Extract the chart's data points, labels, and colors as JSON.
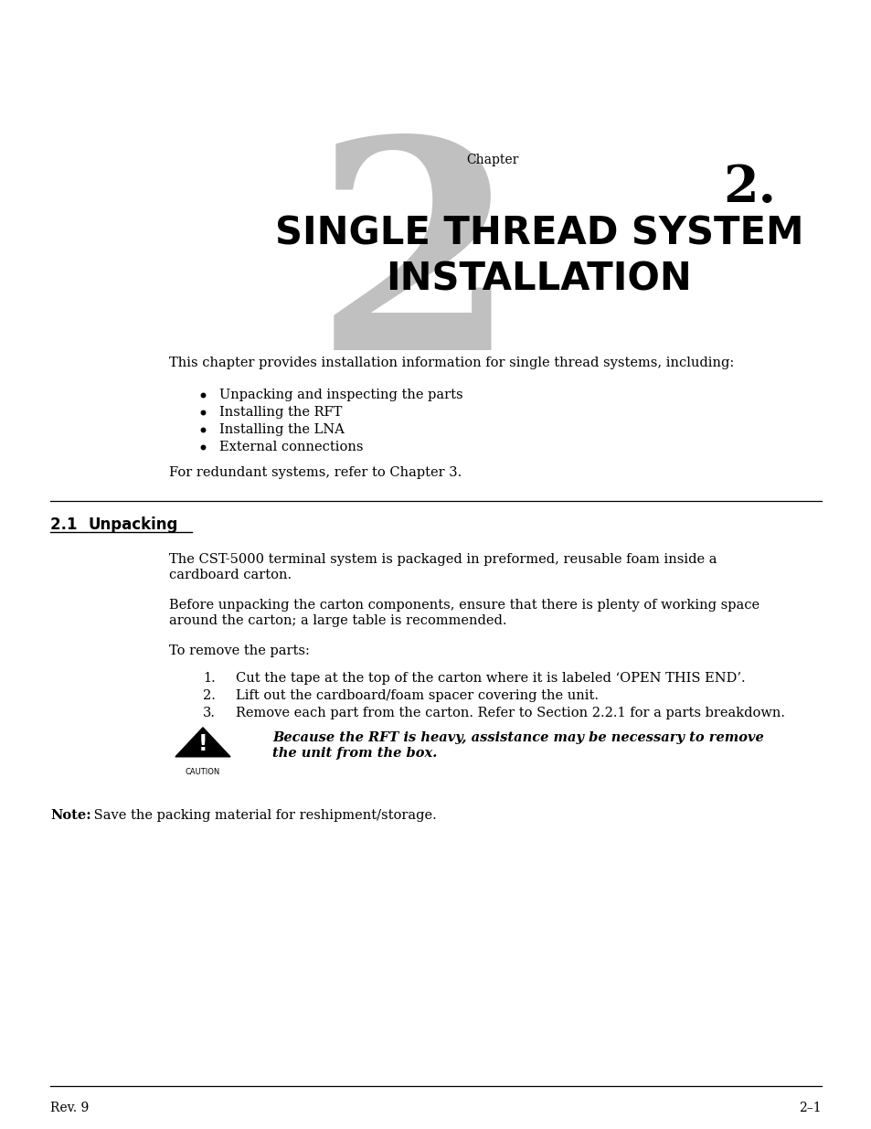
{
  "bg_color": "#ffffff",
  "chapter_label": "Chapter",
  "chapter_number": "2.",
  "chapter_title_line1": "SINGLE THREAD SYSTEM",
  "chapter_title_line2": "INSTALLATION",
  "intro_text": "This chapter provides installation information for single thread systems, including:",
  "bullets": [
    "Unpacking and inspecting the parts",
    "Installing the RFT",
    "Installing the LNA",
    "External connections"
  ],
  "redundant_text": "For redundant systems, refer to Chapter 3.",
  "section_title_num": "2.1  ",
  "section_title_word": "Unpacking",
  "para1_line1": "The CST-5000 terminal system is packaged in preformed, reusable foam inside a",
  "para1_line2": "cardboard carton.",
  "para2_line1": "Before unpacking the carton components, ensure that there is plenty of working space",
  "para2_line2": "around the carton; a large table is recommended.",
  "para3": "To remove the parts:",
  "numbered_items": [
    "Cut the tape at the top of the carton where it is labeled ‘OPEN THIS END’.",
    "Lift out the cardboard/foam spacer covering the unit.",
    "Remove each part from the carton. Refer to Section 2.2.1 for a parts breakdown."
  ],
  "caution_text_line1": "Because the RFT is heavy, assistance may be necessary to remove",
  "caution_text_line2": "the unit from the box.",
  "note_bold": "Note:",
  "note_regular": " Save the packing material for reshipment/storage.",
  "footer_left": "Rev. 9",
  "footer_right": "2–1",
  "text_color": "#000000",
  "watermark_color": "#c0c0c0",
  "line_color": "#000000"
}
